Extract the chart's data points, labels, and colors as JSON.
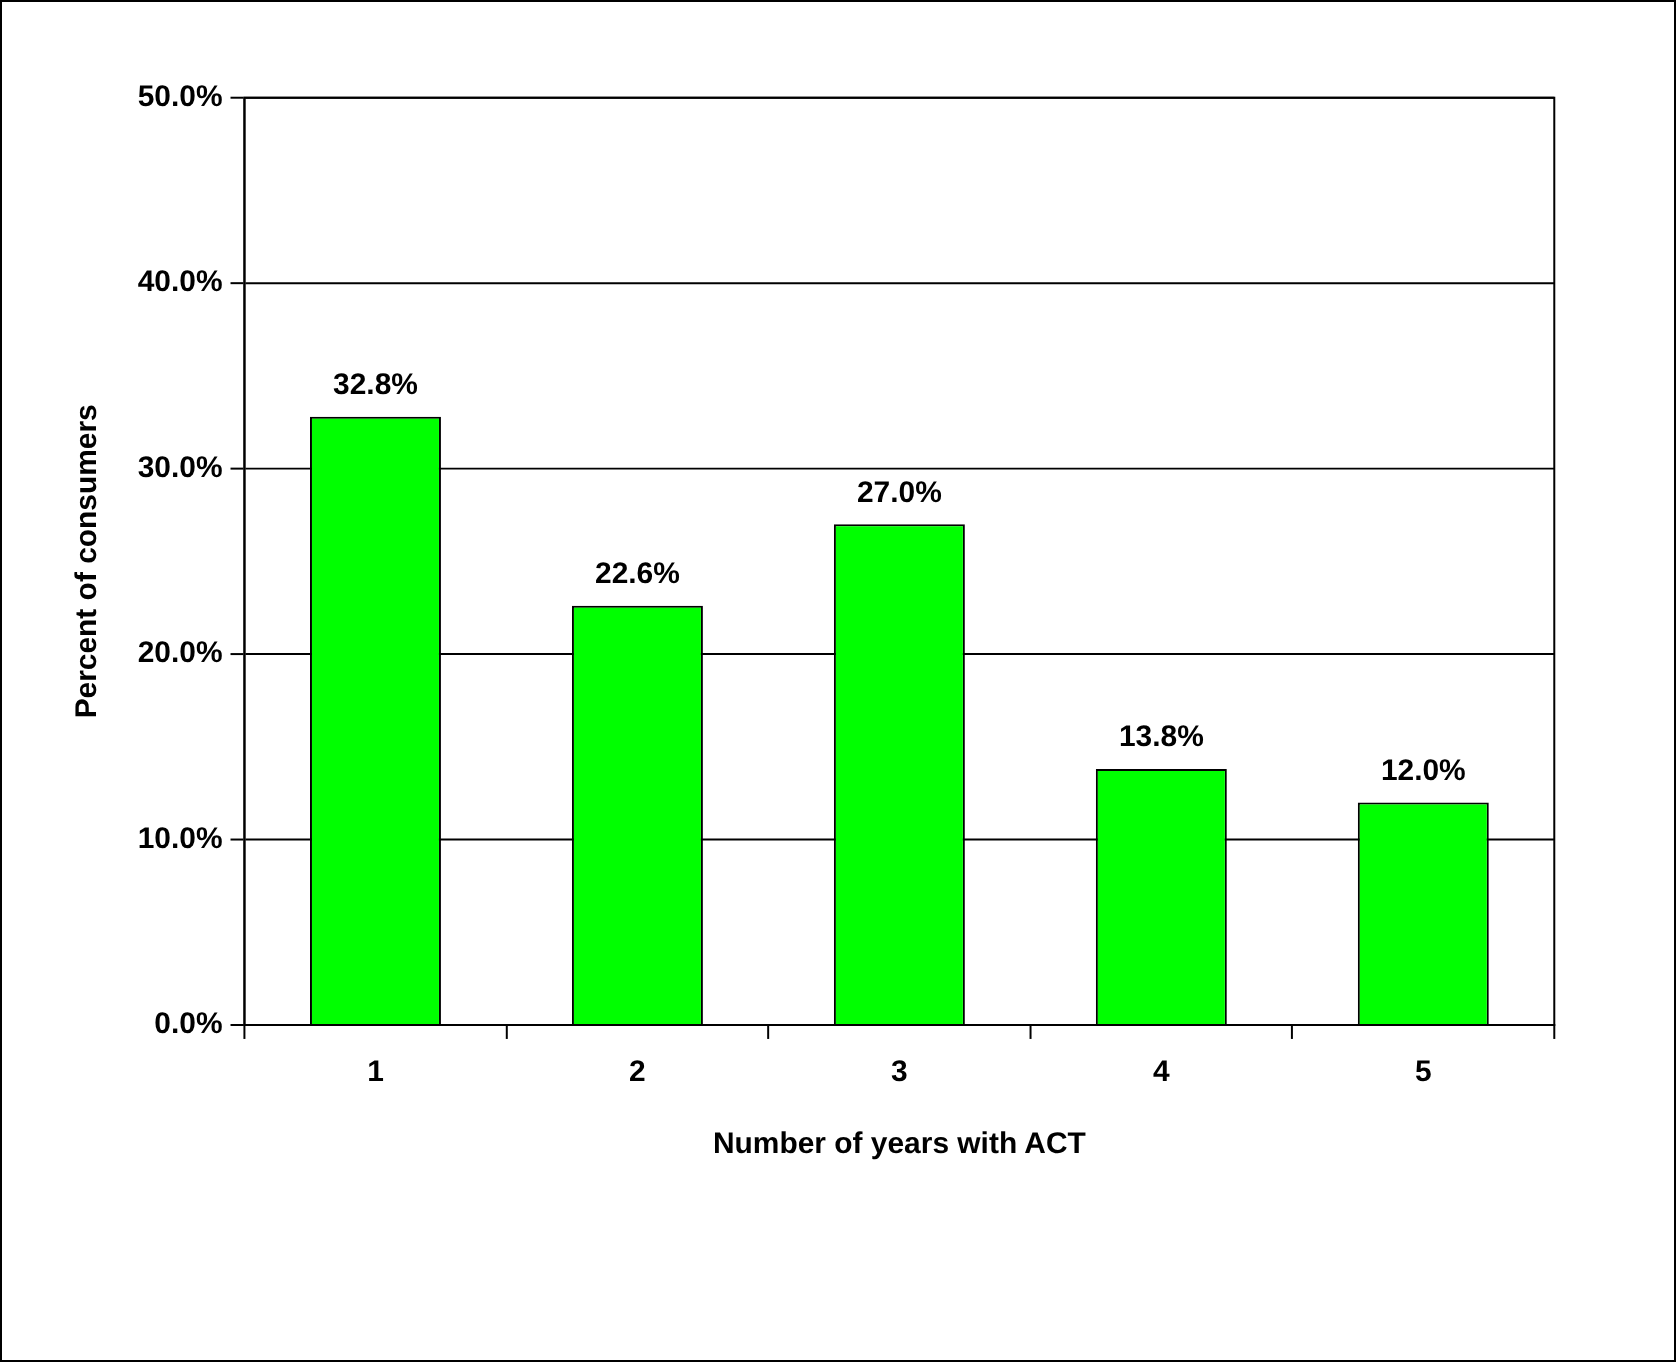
{
  "chart_data": {
    "type": "bar",
    "xlabel": "Number of years with ACT",
    "ylabel": "Percent of consumers",
    "categories": [
      "1",
      "2",
      "3",
      "4",
      "5"
    ],
    "values": [
      32.8,
      22.6,
      27.0,
      13.8,
      12.0
    ],
    "value_labels": [
      "32.8%",
      "22.6%",
      "27.0%",
      "13.8%",
      "12.0%"
    ],
    "color": "#00ff00",
    "ylim": [
      0,
      50
    ],
    "yticks": [
      {
        "value": 0,
        "label": "0.0%"
      },
      {
        "value": 10,
        "label": "10.0%"
      },
      {
        "value": 20,
        "label": "20.0%"
      },
      {
        "value": 30,
        "label": "30.0%"
      },
      {
        "value": 40,
        "label": "40.0%"
      },
      {
        "value": 50,
        "label": "50.0%"
      }
    ],
    "grid": "y",
    "legend": false
  }
}
